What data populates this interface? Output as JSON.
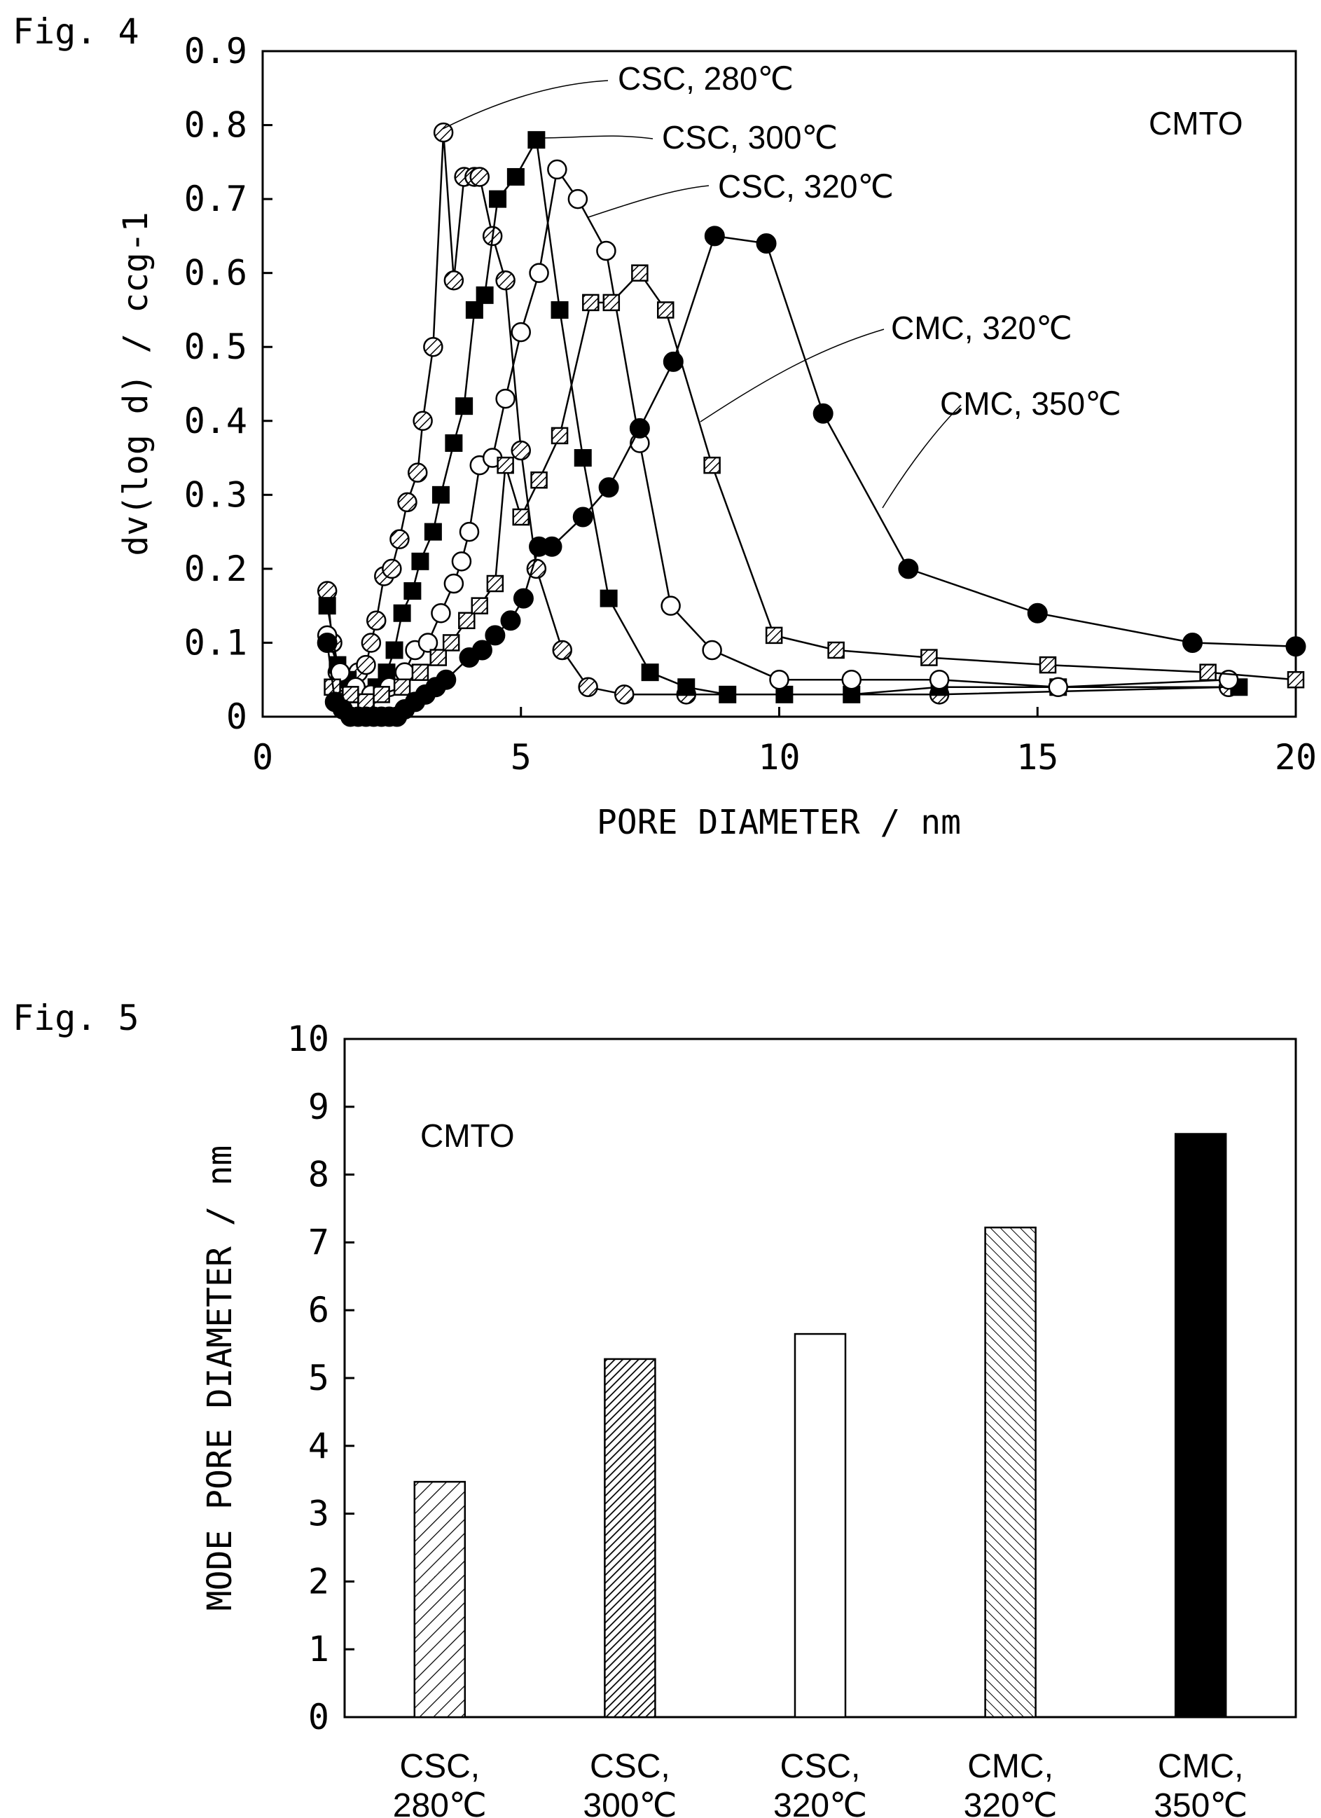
{
  "chart_data": [
    {
      "type": "line",
      "figure_label": "Fig. 4",
      "annotation": "CMTO",
      "xlabel": "PORE DIAMETER / nm",
      "ylabel": "dv(log d) / ccg-1",
      "xlim": [
        0,
        20
      ],
      "ylim": [
        0,
        0.9
      ],
      "x_ticks": [
        "0",
        "5",
        "10",
        "15",
        "20"
      ],
      "y_ticks": [
        "0",
        "0.1",
        "0.2",
        "0.3",
        "0.4",
        "0.5",
        "0.6",
        "0.7",
        "0.8",
        "0.9"
      ],
      "series": [
        {
          "name": "CSC, 280℃",
          "marker": "hatched-circle",
          "points": [
            [
              1.25,
              0.17
            ],
            [
              1.35,
              0.1
            ],
            [
              1.45,
              0.06
            ],
            [
              1.6,
              0.04
            ],
            [
              1.75,
              0.05
            ],
            [
              1.85,
              0.06
            ],
            [
              2.0,
              0.07
            ],
            [
              2.1,
              0.1
            ],
            [
              2.2,
              0.13
            ],
            [
              2.35,
              0.19
            ],
            [
              2.5,
              0.2
            ],
            [
              2.65,
              0.24
            ],
            [
              2.8,
              0.29
            ],
            [
              3.0,
              0.33
            ],
            [
              3.1,
              0.4
            ],
            [
              3.3,
              0.5
            ],
            [
              3.5,
              0.79
            ],
            [
              3.7,
              0.59
            ],
            [
              3.9,
              0.73
            ],
            [
              4.1,
              0.73
            ],
            [
              4.2,
              0.73
            ],
            [
              4.45,
              0.65
            ],
            [
              4.7,
              0.59
            ],
            [
              5.0,
              0.36
            ],
            [
              5.3,
              0.2
            ],
            [
              5.8,
              0.09
            ],
            [
              6.3,
              0.04
            ],
            [
              7.0,
              0.03
            ],
            [
              8.2,
              0.03
            ],
            [
              13.1,
              0.03
            ],
            [
              18.7,
              0.04
            ]
          ]
        },
        {
          "name": "CSC, 300℃",
          "marker": "filled-square",
          "points": [
            [
              1.25,
              0.15
            ],
            [
              1.45,
              0.07
            ],
            [
              1.65,
              0.05
            ],
            [
              1.85,
              0.03
            ],
            [
              2.0,
              0.02
            ],
            [
              2.2,
              0.04
            ],
            [
              2.4,
              0.06
            ],
            [
              2.55,
              0.09
            ],
            [
              2.7,
              0.14
            ],
            [
              2.9,
              0.17
            ],
            [
              3.05,
              0.21
            ],
            [
              3.3,
              0.25
            ],
            [
              3.45,
              0.3
            ],
            [
              3.7,
              0.37
            ],
            [
              3.9,
              0.42
            ],
            [
              4.1,
              0.55
            ],
            [
              4.3,
              0.57
            ],
            [
              4.55,
              0.7
            ],
            [
              4.9,
              0.73
            ],
            [
              5.3,
              0.78
            ],
            [
              5.75,
              0.55
            ],
            [
              6.2,
              0.35
            ],
            [
              6.7,
              0.16
            ],
            [
              7.5,
              0.06
            ],
            [
              8.2,
              0.04
            ],
            [
              9.0,
              0.03
            ],
            [
              10.1,
              0.03
            ],
            [
              11.4,
              0.03
            ],
            [
              13.1,
              0.04
            ],
            [
              15.4,
              0.04
            ],
            [
              18.9,
              0.04
            ]
          ]
        },
        {
          "name": "CSC, 320℃",
          "marker": "open-circle",
          "points": [
            [
              1.25,
              0.11
            ],
            [
              1.5,
              0.06
            ],
            [
              1.8,
              0.04
            ],
            [
              2.1,
              0.03
            ],
            [
              2.45,
              0.04
            ],
            [
              2.75,
              0.06
            ],
            [
              2.95,
              0.09
            ],
            [
              3.2,
              0.1
            ],
            [
              3.45,
              0.14
            ],
            [
              3.7,
              0.18
            ],
            [
              3.85,
              0.21
            ],
            [
              4.0,
              0.25
            ],
            [
              4.2,
              0.34
            ],
            [
              4.45,
              0.35
            ],
            [
              4.7,
              0.43
            ],
            [
              5.0,
              0.52
            ],
            [
              5.35,
              0.6
            ],
            [
              5.7,
              0.74
            ],
            [
              6.1,
              0.7
            ],
            [
              6.65,
              0.63
            ],
            [
              7.3,
              0.37
            ],
            [
              7.9,
              0.15
            ],
            [
              8.7,
              0.09
            ],
            [
              10.0,
              0.05
            ],
            [
              11.4,
              0.05
            ],
            [
              13.1,
              0.05
            ],
            [
              15.4,
              0.04
            ],
            [
              18.7,
              0.05
            ]
          ]
        },
        {
          "name": "CMC, 320℃",
          "marker": "hatched-square",
          "points": [
            [
              1.35,
              0.04
            ],
            [
              1.7,
              0.03
            ],
            [
              2.0,
              0.02
            ],
            [
              2.3,
              0.03
            ],
            [
              2.7,
              0.04
            ],
            [
              3.05,
              0.06
            ],
            [
              3.4,
              0.08
            ],
            [
              3.65,
              0.1
            ],
            [
              3.95,
              0.13
            ],
            [
              4.2,
              0.15
            ],
            [
              4.5,
              0.18
            ],
            [
              4.7,
              0.34
            ],
            [
              5.0,
              0.27
            ],
            [
              5.35,
              0.32
            ],
            [
              5.75,
              0.38
            ],
            [
              6.35,
              0.56
            ],
            [
              6.75,
              0.56
            ],
            [
              7.3,
              0.6
            ],
            [
              7.8,
              0.55
            ],
            [
              8.7,
              0.34
            ],
            [
              9.9,
              0.11
            ],
            [
              11.1,
              0.09
            ],
            [
              12.9,
              0.08
            ],
            [
              15.2,
              0.07
            ],
            [
              18.3,
              0.06
            ],
            [
              20.0,
              0.05
            ]
          ]
        },
        {
          "name": "CMC, 350℃",
          "marker": "filled-circle",
          "points": [
            [
              1.25,
              0.1
            ],
            [
              1.4,
              0.02
            ],
            [
              1.55,
              0.01
            ],
            [
              1.7,
              0.0
            ],
            [
              1.85,
              0.0
            ],
            [
              2.0,
              0.0
            ],
            [
              2.15,
              0.0
            ],
            [
              2.3,
              0.0
            ],
            [
              2.45,
              0.0
            ],
            [
              2.6,
              0.0
            ],
            [
              2.75,
              0.01
            ],
            [
              2.95,
              0.02
            ],
            [
              3.15,
              0.03
            ],
            [
              3.35,
              0.04
            ],
            [
              3.55,
              0.05
            ],
            [
              4.0,
              0.08
            ],
            [
              4.25,
              0.09
            ],
            [
              4.5,
              0.11
            ],
            [
              4.8,
              0.13
            ],
            [
              5.05,
              0.16
            ],
            [
              5.35,
              0.23
            ],
            [
              5.6,
              0.23
            ],
            [
              6.2,
              0.27
            ],
            [
              6.7,
              0.31
            ],
            [
              7.3,
              0.39
            ],
            [
              7.95,
              0.48
            ],
            [
              8.75,
              0.65
            ],
            [
              9.75,
              0.64
            ],
            [
              10.85,
              0.41
            ],
            [
              12.5,
              0.2
            ],
            [
              15.0,
              0.14
            ],
            [
              18.0,
              0.1
            ],
            [
              20.0,
              0.095
            ]
          ]
        }
      ],
      "annotations": [
        "CSC, 280℃",
        "CSC, 300℃",
        "CSC, 320℃",
        "CMC, 320℃",
        "CMC, 350℃"
      ]
    },
    {
      "type": "bar",
      "figure_label": "Fig. 5",
      "annotation": "CMTO",
      "ylabel": "MODE PORE DIAMETER / nm",
      "ylim": [
        0,
        10
      ],
      "y_ticks": [
        "0",
        "1",
        "2",
        "3",
        "4",
        "5",
        "6",
        "7",
        "8",
        "9",
        "10"
      ],
      "categories": [
        [
          "CSC,",
          "280℃"
        ],
        [
          "CSC,",
          "300℃"
        ],
        [
          "CSC,",
          "320℃"
        ],
        [
          "CMC,",
          "320℃"
        ],
        [
          "CMC,",
          "350℃"
        ]
      ],
      "values": [
        3.47,
        5.28,
        5.65,
        7.22,
        8.6
      ],
      "fills": [
        "hatch-light",
        "hatch-dense",
        "white",
        "hatch-reverse",
        "black"
      ]
    }
  ]
}
